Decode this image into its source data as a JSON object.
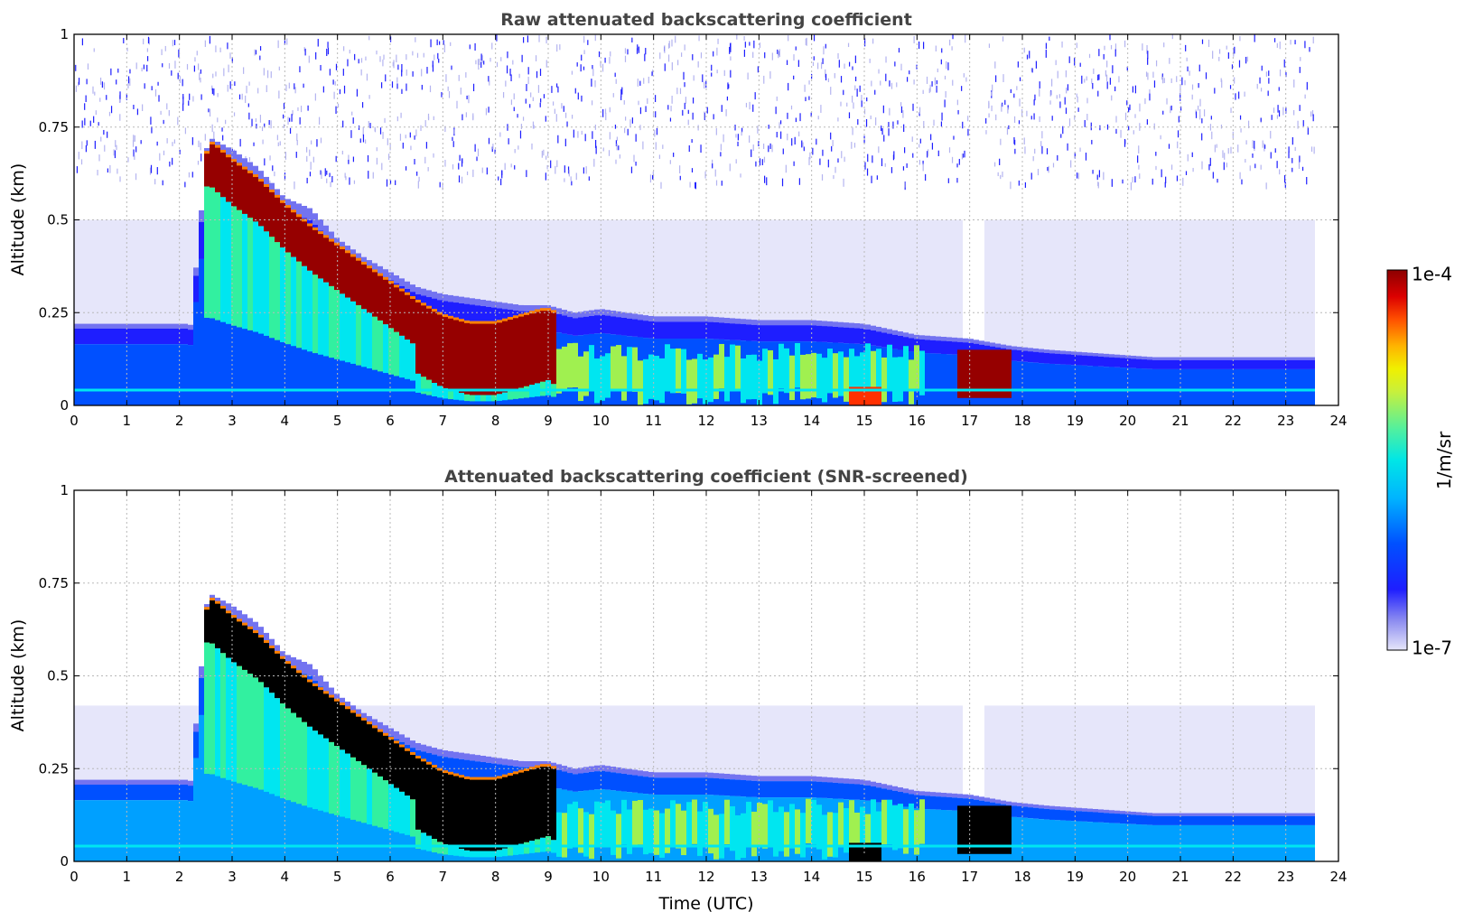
{
  "chart_data": [
    {
      "type": "heatmap",
      "title": "Raw attenuated backscattering coefficient",
      "xlabel": "",
      "ylabel": "Altitude (km)",
      "xlim": [
        0,
        24
      ],
      "ylim": [
        0,
        1
      ],
      "xticks": [
        "0",
        "1",
        "2",
        "3",
        "4",
        "5",
        "6",
        "7",
        "8",
        "9",
        "10",
        "11",
        "12",
        "13",
        "14",
        "15",
        "16",
        "17",
        "18",
        "19",
        "20",
        "21",
        "22",
        "23",
        "24"
      ],
      "yticks": [
        "0",
        "0.25",
        "0.5",
        "0.75",
        "1"
      ],
      "grid": true,
      "data_extent_hours": [
        0,
        23.55
      ],
      "cloud_layer": {
        "time": [
          2.45,
          2.6,
          3.0,
          3.5,
          4.0,
          4.5,
          5.0,
          5.5,
          6.0,
          6.5,
          7.0,
          7.5,
          8.0,
          8.5,
          9.0,
          9.5,
          10.0,
          11.0,
          12.0,
          13.0,
          14.0,
          15.0,
          16.0,
          17.0,
          17.8,
          18.5,
          19.5,
          20.5,
          21.5,
          22.5,
          23.55
        ],
        "top_km": [
          0.67,
          0.72,
          0.69,
          0.64,
          0.56,
          0.53,
          0.45,
          0.4,
          0.36,
          0.32,
          0.3,
          0.29,
          0.28,
          0.27,
          0.27,
          0.25,
          0.26,
          0.24,
          0.24,
          0.23,
          0.23,
          0.22,
          0.19,
          0.18,
          0.16,
          0.15,
          0.14,
          0.13,
          0.13,
          0.13,
          0.13
        ],
        "peak_center_km": [
          0.65,
          0.65,
          0.6,
          0.55,
          0.48,
          0.42,
          0.37,
          0.32,
          0.27,
          0.22,
          0.18,
          0.16,
          0.16,
          0.18,
          0.2,
          0.15,
          0.1,
          0.08,
          0.08,
          0.08,
          0.07,
          0.07,
          0.07,
          0.09,
          0.1,
          0.08,
          0.07,
          0.07,
          0.07,
          0.07,
          0.07
        ]
      }
    },
    {
      "type": "heatmap",
      "title": "Attenuated backscattering coefficient (SNR-screened)",
      "xlabel": "Time (UTC)",
      "ylabel": "Altitude (km)",
      "xlim": [
        0,
        24
      ],
      "ylim": [
        0,
        1
      ],
      "xticks": [
        "0",
        "1",
        "2",
        "3",
        "4",
        "5",
        "6",
        "7",
        "8",
        "9",
        "10",
        "11",
        "12",
        "13",
        "14",
        "15",
        "16",
        "17",
        "18",
        "19",
        "20",
        "21",
        "22",
        "23",
        "24"
      ],
      "yticks": [
        "0",
        "0.25",
        "0.5",
        "0.75",
        "1"
      ],
      "grid": true,
      "data_extent_hours": [
        0,
        23.55
      ],
      "screened_top_km": 0.42
    }
  ],
  "colorbar": {
    "label": "1/m/sr",
    "max_label": "1e-4",
    "min_label": "1e-7",
    "scale": "log",
    "colors": [
      "#e6e6fa",
      "#b4b4f0",
      "#7373f0",
      "#1e1eff",
      "#0050ff",
      "#00a0ff",
      "#00e6f0",
      "#32f0a0",
      "#a0f050",
      "#e6f000",
      "#ffc800",
      "#ff8000",
      "#ff3000",
      "#dc0000",
      "#960000"
    ]
  }
}
